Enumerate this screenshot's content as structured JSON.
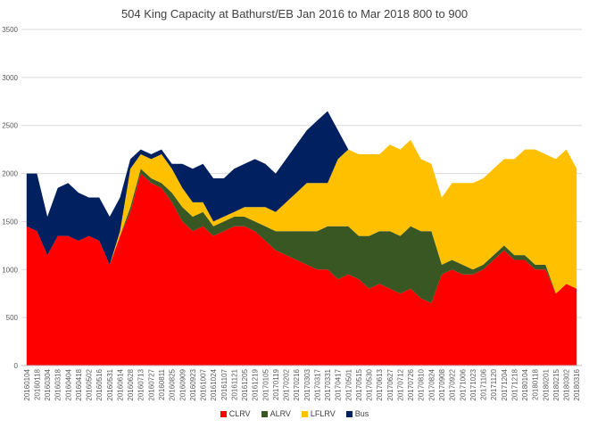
{
  "chart_data": {
    "type": "area",
    "stacked": true,
    "title": "504 King Capacity at Bathurst/EB Jan 2016 to Mar 2018  800 to 900",
    "xlabel": "",
    "ylabel": "",
    "ylim": [
      0,
      3500
    ],
    "yticks": [
      0,
      500,
      1000,
      1500,
      2000,
      2500,
      3000,
      3500
    ],
    "grid": true,
    "legend": "bottom",
    "categories": [
      "20160104",
      "20160118",
      "20160304",
      "20160318",
      "20160404",
      "20160418",
      "20160502",
      "20160516",
      "20160531",
      "20160614",
      "20160628",
      "20160713",
      "20160727",
      "20160811",
      "20160825",
      "20160909",
      "20160923",
      "20161007",
      "20161024",
      "20161107",
      "20161121",
      "20161205",
      "20161219",
      "20170105",
      "20170119",
      "20170202",
      "20170216",
      "20170303",
      "20170317",
      "20170331",
      "20170417",
      "20170501",
      "20170515",
      "20170530",
      "20170613",
      "20170627",
      "20170712",
      "20170726",
      "20170810",
      "20170824",
      "20170908",
      "20170922",
      "20171006",
      "20171023",
      "20171106",
      "20171120",
      "20171204",
      "20171218",
      "20180104",
      "20180118",
      "20180201",
      "20180215",
      "20180302",
      "20180316"
    ],
    "series": [
      {
        "name": "CLRV",
        "color": "#ff0000",
        "values": [
          1450,
          1400,
          1150,
          1350,
          1350,
          1300,
          1350,
          1300,
          1050,
          1350,
          1600,
          2000,
          1900,
          1850,
          1700,
          1500,
          1400,
          1450,
          1350,
          1400,
          1450,
          1450,
          1400,
          1300,
          1200,
          1150,
          1100,
          1050,
          1000,
          1000,
          900,
          950,
          900,
          800,
          850,
          800,
          750,
          800,
          700,
          650,
          950,
          1000,
          950,
          950,
          1000,
          1100,
          1200,
          1100,
          1100,
          1000,
          1000,
          750,
          850,
          800
        ]
      },
      {
        "name": "ALRV",
        "color": "#385723",
        "values": [
          0,
          0,
          0,
          0,
          0,
          0,
          0,
          0,
          0,
          0,
          50,
          50,
          50,
          50,
          100,
          150,
          150,
          150,
          100,
          100,
          100,
          100,
          100,
          150,
          200,
          250,
          300,
          350,
          400,
          450,
          550,
          500,
          450,
          550,
          550,
          600,
          600,
          650,
          700,
          750,
          100,
          100,
          100,
          50,
          50,
          50,
          50,
          50,
          50,
          50,
          50,
          0,
          0,
          0
        ]
      },
      {
        "name": "LFLRV",
        "color": "#ffc000",
        "values": [
          0,
          0,
          0,
          0,
          0,
          0,
          0,
          0,
          0,
          50,
          400,
          150,
          200,
          300,
          250,
          200,
          150,
          100,
          50,
          50,
          50,
          100,
          150,
          200,
          200,
          300,
          400,
          500,
          500,
          450,
          700,
          800,
          850,
          850,
          800,
          900,
          900,
          900,
          750,
          700,
          700,
          800,
          850,
          900,
          900,
          900,
          900,
          1000,
          1100,
          1200,
          1150,
          1400,
          1400,
          1250
        ]
      },
      {
        "name": "Bus",
        "color": "#002060",
        "values": [
          550,
          600,
          400,
          500,
          550,
          500,
          400,
          450,
          500,
          350,
          100,
          50,
          50,
          50,
          50,
          250,
          350,
          400,
          450,
          400,
          450,
          450,
          500,
          450,
          400,
          450,
          500,
          550,
          650,
          750,
          300,
          0,
          0,
          0,
          0,
          0,
          0,
          0,
          0,
          0,
          0,
          0,
          0,
          0,
          0,
          0,
          0,
          0,
          0,
          0,
          0,
          0,
          0,
          0
        ]
      }
    ]
  }
}
